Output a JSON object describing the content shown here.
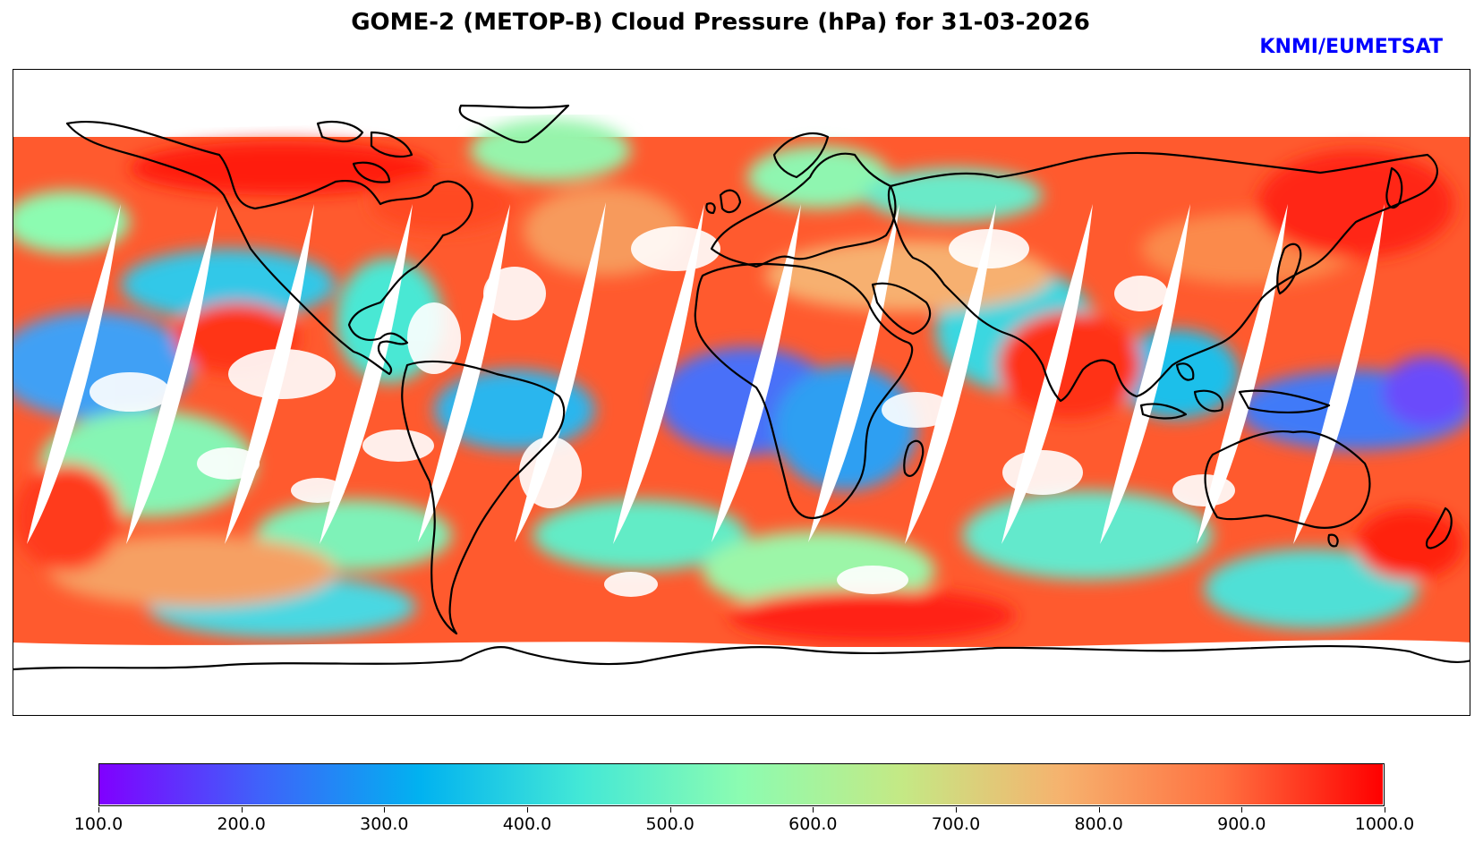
{
  "title": "GOME-2 (METOP-B) Cloud Pressure (hPa) for 31-03-2026",
  "credit": "KNMI/EUMETSAT",
  "colors": {
    "credit": "#0000ff",
    "coastline": "#000000",
    "colormap_stops": [
      "#8000ff",
      "#3f62fa",
      "#01b2f0",
      "#43e8d6",
      "#8cfcb1",
      "#c4e985",
      "#f6b26e",
      "#ff7040",
      "#ff0000"
    ]
  },
  "colorbar": {
    "label_unit": "hPa",
    "min": 100,
    "max": 1000,
    "ticks": [
      "100.0",
      "200.0",
      "300.0",
      "400.0",
      "500.0",
      "600.0",
      "700.0",
      "800.0",
      "900.0",
      "1000.0"
    ]
  },
  "map": {
    "projection": "Plate Carree (global)",
    "parameter": "Cloud Pressure",
    "instrument": "GOME-2",
    "satellite": "METOP-B",
    "date": "31-03-2026"
  }
}
